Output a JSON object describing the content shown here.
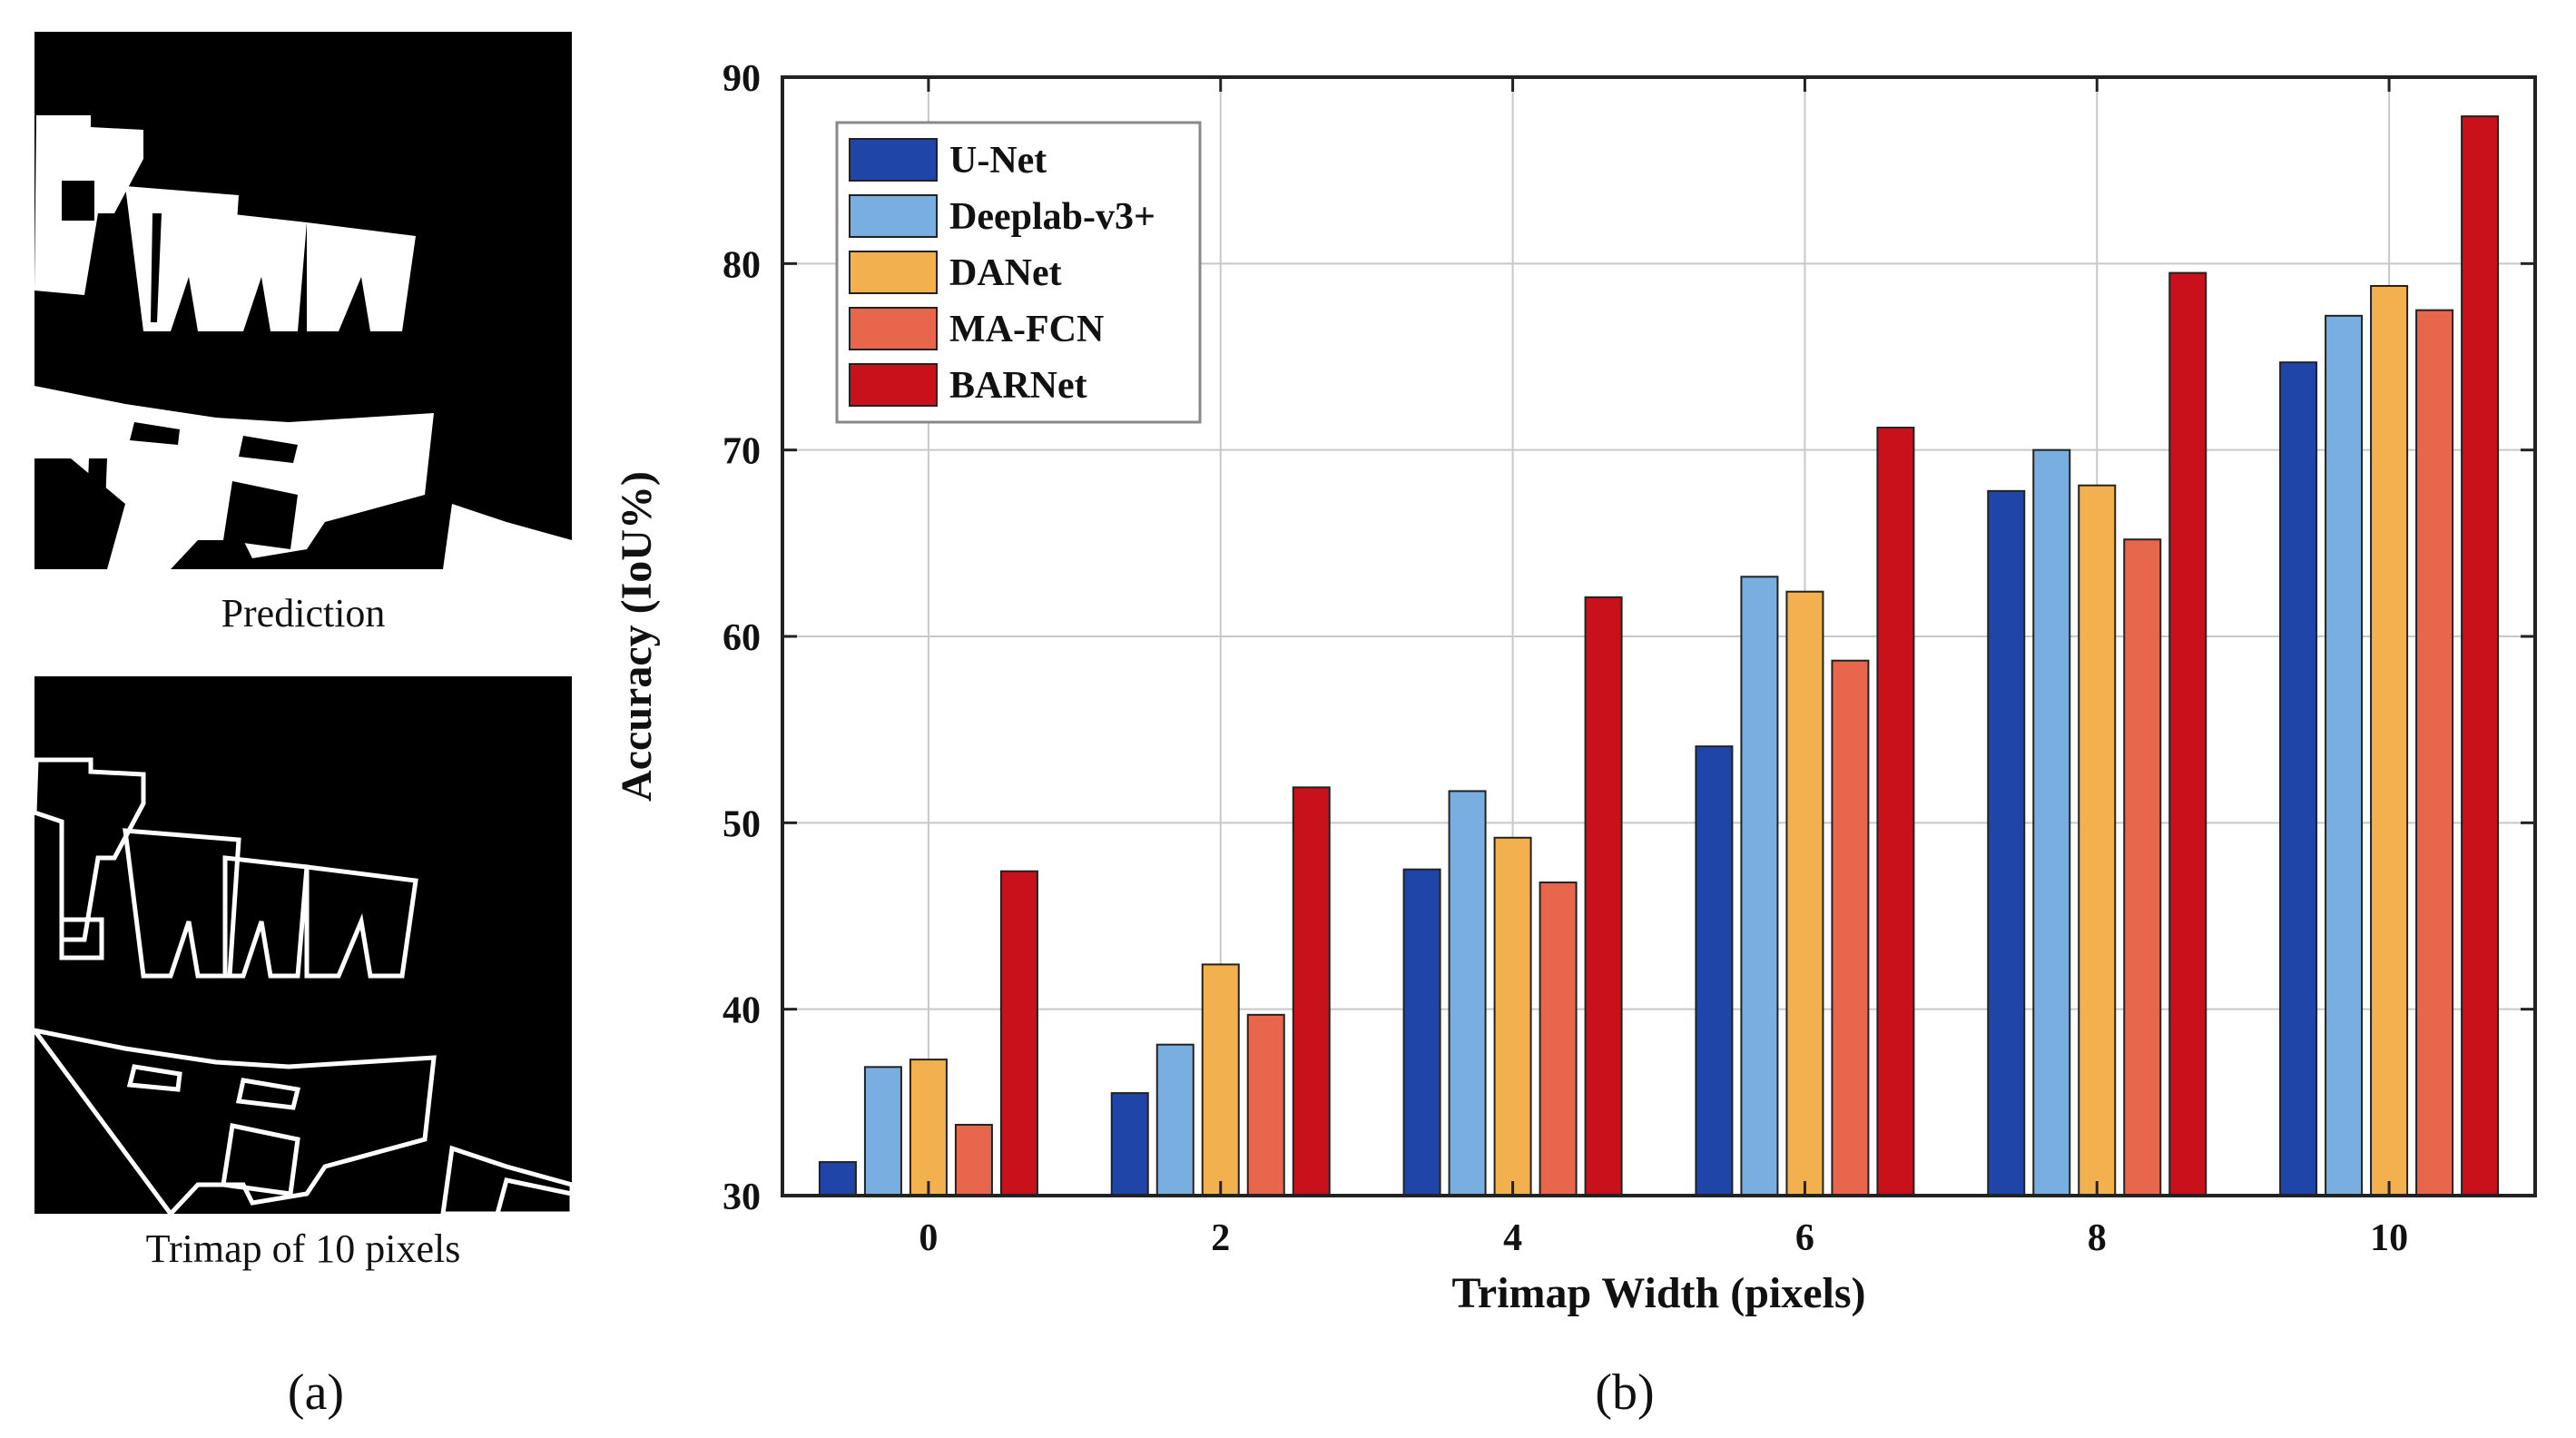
{
  "figure": {
    "panel_a": {
      "prediction_caption": "Prediction",
      "trimap_caption": "Trimap of 10 pixels",
      "label": "(a)"
    },
    "panel_b": {
      "label": "(b)"
    }
  },
  "chart_data": {
    "type": "bar",
    "title": "",
    "xlabel": "Trimap Width (pixels)",
    "ylabel": "Accuracy (IoU%)",
    "categories": [
      "0",
      "2",
      "4",
      "6",
      "8",
      "10"
    ],
    "ylim": [
      30,
      90
    ],
    "yticks": [
      30,
      40,
      50,
      60,
      70,
      80,
      90
    ],
    "grid": true,
    "legend_position": "top-left",
    "series": [
      {
        "name": "U-Net",
        "color": "#1f45a8",
        "values": [
          31.8,
          35.5,
          47.5,
          54.1,
          67.8,
          74.7
        ]
      },
      {
        "name": "Deeplab-v3+",
        "color": "#78aee0",
        "values": [
          36.9,
          38.1,
          51.7,
          63.2,
          70.0,
          77.2
        ]
      },
      {
        "name": "DANet",
        "color": "#f2b04e",
        "values": [
          37.3,
          42.4,
          49.2,
          62.4,
          68.1,
          78.8
        ]
      },
      {
        "name": "MA-FCN",
        "color": "#e8664c",
        "values": [
          33.8,
          39.7,
          46.8,
          58.7,
          65.2,
          77.5
        ]
      },
      {
        "name": "BARNet",
        "color": "#c8111a",
        "values": [
          47.4,
          51.9,
          62.1,
          71.2,
          79.5,
          87.9
        ]
      }
    ]
  }
}
